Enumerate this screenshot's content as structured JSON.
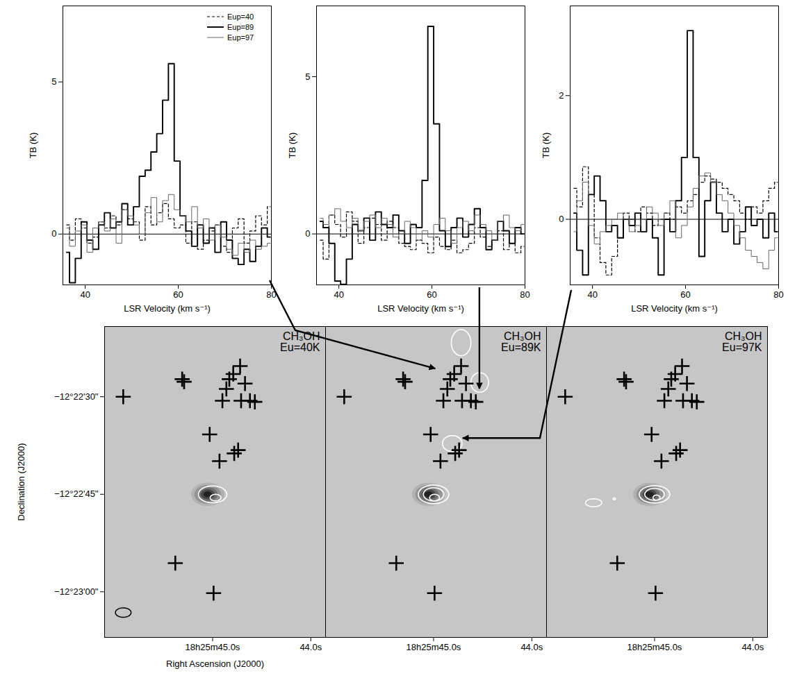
{
  "chart_data": [
    {
      "type": "line",
      "x": [
        36.0,
        37.25,
        38.5,
        39.75,
        41.0,
        42.25,
        43.5,
        44.75,
        46.0,
        47.25,
        48.5,
        49.75,
        51.0,
        52.25,
        53.5,
        54.75,
        56.0,
        57.25,
        58.5,
        59.75,
        61.0,
        62.25,
        63.5,
        64.75,
        66.0,
        67.25,
        68.5,
        69.75,
        71.0,
        72.25,
        73.5,
        74.75,
        76.0,
        77.25,
        78.5,
        79.75
      ],
      "series": [
        {
          "name": "Eup=40",
          "color": "#000000",
          "line_style": "dashed",
          "values": [
            0.3,
            -0.2,
            0.5,
            0.2,
            -0.3,
            -0.1,
            0.4,
            0.2,
            0.6,
            0.3,
            0.8,
            0.5,
            0.4,
            -0.2,
            0.9,
            0.3,
            0.7,
            1.0,
            0.5,
            0.2,
            0.3,
            -0.3,
            0.4,
            -0.5,
            -0.2,
            0.1,
            0.3,
            -0.4,
            -0.6,
            0.2,
            0.5,
            -0.3,
            0.1,
            0.6,
            0.3,
            0.9
          ]
        },
        {
          "name": "Eup=89",
          "color": "#000000",
          "line_style": "solid",
          "values": [
            -0.6,
            -1.6,
            -0.8,
            0.4,
            -0.2,
            -0.5,
            0.3,
            0.7,
            0.2,
            0.4,
            1.0,
            0.3,
            0.9,
            1.9,
            2.1,
            2.7,
            3.3,
            4.4,
            5.6,
            2.4,
            0.6,
            0.1,
            -0.4,
            0.3,
            -0.3,
            0.2,
            -0.6,
            0.4,
            -0.2,
            -0.8,
            -1.0,
            -0.5,
            -0.9,
            -0.4,
            0.2,
            -0.1
          ]
        },
        {
          "name": "Eup=97",
          "color": "#666666",
          "line_style": "thin",
          "values": [
            0.2,
            -0.4,
            0.1,
            0.3,
            -0.6,
            0.2,
            0.4,
            0.1,
            0.5,
            -0.3,
            0.8,
            0.6,
            0.3,
            0.0,
            0.7,
            1.2,
            0.4,
            1.1,
            1.3,
            0.8,
            0.6,
            0.4,
            0.9,
            0.2,
            0.5,
            -0.2,
            0.3,
            -0.1,
            -0.5,
            -0.7,
            -0.3,
            -0.6,
            -0.2,
            -0.5,
            -0.4,
            -0.3
          ]
        }
      ],
      "xlim": [
        35.2,
        80
      ],
      "ylim": [
        -1.67,
        7.5
      ],
      "xticks": [
        40,
        60,
        80
      ],
      "yticks": [
        0,
        5
      ],
      "xlabel": "LSR Velocity (km s⁻¹)",
      "ylabel": "TB (K)",
      "baseline": 0,
      "legend": "upper right",
      "position": {
        "ra": 44.98,
        "dec": -12.37381
      }
    },
    {
      "type": "line",
      "x": [
        36.0,
        37.25,
        38.5,
        39.75,
        41.0,
        42.25,
        43.5,
        44.75,
        46.0,
        47.25,
        48.5,
        49.75,
        51.0,
        52.25,
        53.5,
        54.75,
        56.0,
        57.25,
        58.5,
        59.75,
        61.0,
        62.25,
        63.5,
        64.75,
        66.0,
        67.25,
        68.5,
        69.75,
        71.0,
        72.25,
        73.5,
        74.75,
        76.0,
        77.25,
        78.5,
        79.75
      ],
      "series": [
        {
          "color": "#000000",
          "line_style": "dashed",
          "values": [
            -0.2,
            -0.8,
            0.6,
            0.3,
            -0.1,
            0.7,
            0.4,
            -0.3,
            0.2,
            0.5,
            0.3,
            -0.2,
            0.4,
            0.2,
            -0.3,
            -0.4,
            -0.5,
            -0.2,
            -0.3,
            -0.6,
            -0.1,
            -0.4,
            -0.5,
            -0.2,
            -0.6,
            -0.5,
            -0.3,
            0.2,
            -0.1,
            -0.4,
            -0.2,
            0.1,
            -0.5,
            -0.3,
            -0.6,
            -0.4
          ]
        },
        {
          "color": "#000000",
          "line_style": "solid",
          "values": [
            0.4,
            0.2,
            -0.3,
            -1.5,
            -1.6,
            -0.8,
            0.3,
            0.1,
            0.5,
            -0.2,
            0.7,
            0.3,
            0.2,
            0.6,
            0.1,
            -0.3,
            0.3,
            0.2,
            1.7,
            6.6,
            3.5,
            0.1,
            -0.4,
            0.2,
            0.5,
            -0.1,
            0.3,
            0.8,
            0.2,
            -0.5,
            -0.2,
            0.4,
            0.1,
            -0.3,
            0.2,
            0.0
          ]
        },
        {
          "color": "#666666",
          "line_style": "thin",
          "values": [
            0.5,
            0.3,
            0.6,
            0.8,
            0.4,
            0.2,
            0.5,
            0.1,
            0.4,
            0.6,
            0.2,
            0.5,
            0.3,
            -0.1,
            0.0,
            0.4,
            0.2,
            -0.2,
            0.1,
            -0.1,
            0.3,
            0.5,
            0.1,
            -0.3,
            0.2,
            0.4,
            0.1,
            0.6,
            0.3,
            0.1,
            -0.2,
            0.4,
            0.6,
            0.2,
            0.1,
            0.3
          ]
        }
      ],
      "xlim": [
        35.2,
        80
      ],
      "ylim": [
        -1.62,
        7.25
      ],
      "xticks": [
        40,
        60,
        80
      ],
      "yticks": [
        0,
        5
      ],
      "xlabel": "LSR Velocity (km s⁻¹)",
      "ylabel": "TB (K)",
      "baseline": 0,
      "position": {
        "ra": 44.53,
        "dec": -12.37467
      }
    },
    {
      "type": "line",
      "x": [
        36.0,
        37.25,
        38.5,
        39.75,
        41.0,
        42.25,
        43.5,
        44.75,
        46.0,
        47.25,
        48.5,
        49.75,
        51.0,
        52.25,
        53.5,
        54.75,
        56.0,
        57.25,
        58.5,
        59.75,
        61.0,
        62.25,
        63.5,
        64.75,
        66.0,
        67.25,
        68.5,
        69.75,
        71.0,
        72.25,
        73.5,
        74.75,
        76.0,
        77.25,
        78.5,
        79.75
      ],
      "series": [
        {
          "color": "#000000",
          "line_style": "dashed",
          "values": [
            0.5,
            0.2,
            0.85,
            0.4,
            -0.3,
            -0.7,
            -0.9,
            -0.6,
            -0.3,
            0.1,
            0.0,
            -0.2,
            0.2,
            0.1,
            -0.1,
            0.0,
            0.1,
            0.0,
            0.2,
            0.1,
            0.3,
            0.4,
            0.6,
            0.7,
            0.65,
            0.6,
            0.5,
            0.4,
            0.3,
            0.1,
            0.0,
            0.2,
            0.1,
            0.3,
            0.5,
            0.6
          ]
        },
        {
          "color": "#000000",
          "line_style": "solid",
          "values": [
            0.1,
            -0.5,
            -0.9,
            0.4,
            0.7,
            0.3,
            -0.2,
            -0.1,
            -0.3,
            0.0,
            -0.1,
            0.1,
            -0.2,
            0.0,
            -0.3,
            -0.9,
            0.0,
            -0.2,
            0.3,
            1.0,
            3.05,
            1.0,
            -0.6,
            0.3,
            0.6,
            0.1,
            -0.2,
            0.0,
            -0.4,
            -0.2,
            0.2,
            -0.1,
            0.0,
            -0.3,
            0.1,
            -0.2
          ]
        },
        {
          "color": "#666666",
          "line_style": "thin",
          "values": [
            -0.2,
            0.3,
            0.6,
            -0.1,
            -0.4,
            -0.2,
            -0.1,
            0.0,
            0.1,
            0.0,
            -0.2,
            -0.1,
            0.0,
            0.2,
            0.1,
            -0.1,
            0.1,
            0.3,
            -0.3,
            -0.1,
            0.2,
            0.5,
            0.7,
            0.75,
            0.6,
            0.4,
            0.3,
            0.1,
            -0.1,
            -0.3,
            -0.5,
            -0.6,
            -0.7,
            -0.8,
            -0.5,
            -0.3
          ]
        }
      ],
      "xlim": [
        35.2,
        80
      ],
      "ylim": [
        -1.06,
        3.45
      ],
      "xticks": [
        40,
        60,
        80
      ],
      "yticks": [
        0,
        2
      ],
      "xlabel": "LSR Velocity (km s⁻¹)",
      "ylabel": "TB (K)",
      "baseline": 0,
      "position": {
        "ra": 44.7,
        "dec": -12.37678
      }
    },
    {
      "type": "contour",
      "xlim": [
        46.1,
        43.85
      ],
      "ylim": [
        -12.38528,
        -12.372
      ],
      "xticks": [
        {
          "value": 45,
          "label": "18h25m45.0s"
        },
        {
          "value": 44,
          "label": "44.0s"
        }
      ],
      "yticks": [
        {
          "value": -12.375,
          "label": "−12°22'30\""
        },
        {
          "value": -12.379167,
          "label": "−12°22'45\""
        },
        {
          "value": -12.383333,
          "label": "−12°23'00\""
        }
      ],
      "xlabel": "Right Ascension (J2000)",
      "ylabel": "Declination (J2000)",
      "annotations": [
        "CH₃OH",
        "Eu=40K"
      ],
      "marker": "plus",
      "markers": {
        "ra": [
          45.91,
          45.31,
          45.29,
          44.72,
          44.83,
          44.79,
          44.86,
          44.9,
          44.67,
          44.71,
          44.62,
          44.57,
          45.03,
          44.74,
          44.78,
          44.93,
          45.38,
          44.99
        ],
        "dec": [
          -12.375,
          -12.37425,
          -12.37436,
          -12.37369,
          -12.37425,
          -12.37403,
          -12.37467,
          -12.37517,
          -12.37444,
          -12.37517,
          -12.37517,
          -12.37522,
          -12.37661,
          -12.37728,
          -12.37742,
          -12.37775,
          -12.38211,
          -12.38339
        ]
      },
      "continuum": {
        "ra": 45.05,
        "dec": -12.37917,
        "dra": 0.17,
        "ddec": 0.0005
      },
      "contours": [
        {
          "ra": 45.0,
          "dec": -12.37917,
          "dra": 0.145,
          "ddec": 0.00036
        },
        {
          "ra": 44.97,
          "dec": -12.37931,
          "dra": 0.055,
          "ddec": 0.00014
        }
      ],
      "beam": {
        "ra": 45.91,
        "dec": -12.38422,
        "dra": 0.08,
        "ddec": 0.0002
      }
    },
    {
      "type": "contour",
      "xlim": [
        46.1,
        43.85
      ],
      "ylim": [
        -12.38528,
        -12.372
      ],
      "xticks": [
        {
          "value": 45,
          "label": "18h25m45.0s"
        },
        {
          "value": 44,
          "label": "44.0s"
        }
      ],
      "tick_labels": "x",
      "annotations": [
        "CH₃OH",
        "Eu=89K"
      ],
      "marker": "plus",
      "markers": {
        "ra": [
          45.91,
          45.31,
          45.29,
          44.72,
          44.83,
          44.79,
          44.86,
          44.9,
          44.67,
          44.71,
          44.62,
          44.57,
          45.03,
          44.74,
          44.78,
          44.93,
          45.38,
          44.99
        ],
        "dec": [
          -12.375,
          -12.37425,
          -12.37436,
          -12.37369,
          -12.37425,
          -12.37403,
          -12.37467,
          -12.37517,
          -12.37444,
          -12.37517,
          -12.37517,
          -12.37522,
          -12.37661,
          -12.37728,
          -12.37742,
          -12.37775,
          -12.38211,
          -12.38339
        ]
      },
      "continuum": {
        "ra": 45.05,
        "dec": -12.37917,
        "dra": 0.17,
        "ddec": 0.0005
      },
      "contours": [
        {
          "ra": 45.0,
          "dec": -12.37917,
          "dra": 0.155,
          "ddec": 0.0004
        },
        {
          "ra": 45.0,
          "dec": -12.37917,
          "dra": 0.105,
          "ddec": 0.00028
        },
        {
          "ra": 44.99,
          "dec": -12.37931,
          "dra": 0.05,
          "ddec": 0.00014
        },
        {
          "ra": 44.72,
          "dec": -12.37269,
          "dra": 0.1,
          "ddec": 0.00056
        },
        {
          "ra": 44.53,
          "dec": -12.37439,
          "dra": 0.09,
          "ddec": 0.00042
        },
        {
          "ra": 44.81,
          "dec": -12.377,
          "dra": 0.1,
          "ddec": 0.00034
        }
      ]
    },
    {
      "type": "contour",
      "xlim": [
        46.1,
        43.85
      ],
      "ylim": [
        -12.38528,
        -12.372
      ],
      "xticks": [
        {
          "value": 45,
          "label": "18h25m45.0s"
        },
        {
          "value": 44,
          "label": "44.0s"
        }
      ],
      "tick_labels": "x",
      "annotations": [
        "CH₃OH",
        "Eu=97K"
      ],
      "marker": "plus",
      "markers": {
        "ra": [
          45.91,
          45.31,
          45.29,
          44.72,
          44.83,
          44.79,
          44.86,
          44.9,
          44.67,
          44.71,
          44.62,
          44.57,
          45.03,
          44.74,
          44.78,
          44.93,
          45.38,
          44.99
        ],
        "dec": [
          -12.375,
          -12.37425,
          -12.37436,
          -12.37369,
          -12.37425,
          -12.37403,
          -12.37467,
          -12.37517,
          -12.37444,
          -12.37517,
          -12.37517,
          -12.37522,
          -12.37661,
          -12.37728,
          -12.37742,
          -12.37775,
          -12.38211,
          -12.38339
        ]
      },
      "continuum": {
        "ra": 45.05,
        "dec": -12.37917,
        "dra": 0.17,
        "ddec": 0.0005
      },
      "contours": [
        {
          "ra": 45.0,
          "dec": -12.37917,
          "dra": 0.155,
          "ddec": 0.00037
        },
        {
          "ra": 45.0,
          "dec": -12.37917,
          "dra": 0.1,
          "ddec": 0.00025
        },
        {
          "ra": 44.98,
          "dec": -12.37931,
          "dra": 0.035,
          "ddec": 0.00011
        },
        {
          "ra": 45.62,
          "dec": -12.37953,
          "dra": 0.083,
          "ddec": 0.00017
        },
        {
          "ra": 45.41,
          "dec": -12.37936,
          "dra": 0.012,
          "ddec": 4e-05
        }
      ]
    }
  ]
}
